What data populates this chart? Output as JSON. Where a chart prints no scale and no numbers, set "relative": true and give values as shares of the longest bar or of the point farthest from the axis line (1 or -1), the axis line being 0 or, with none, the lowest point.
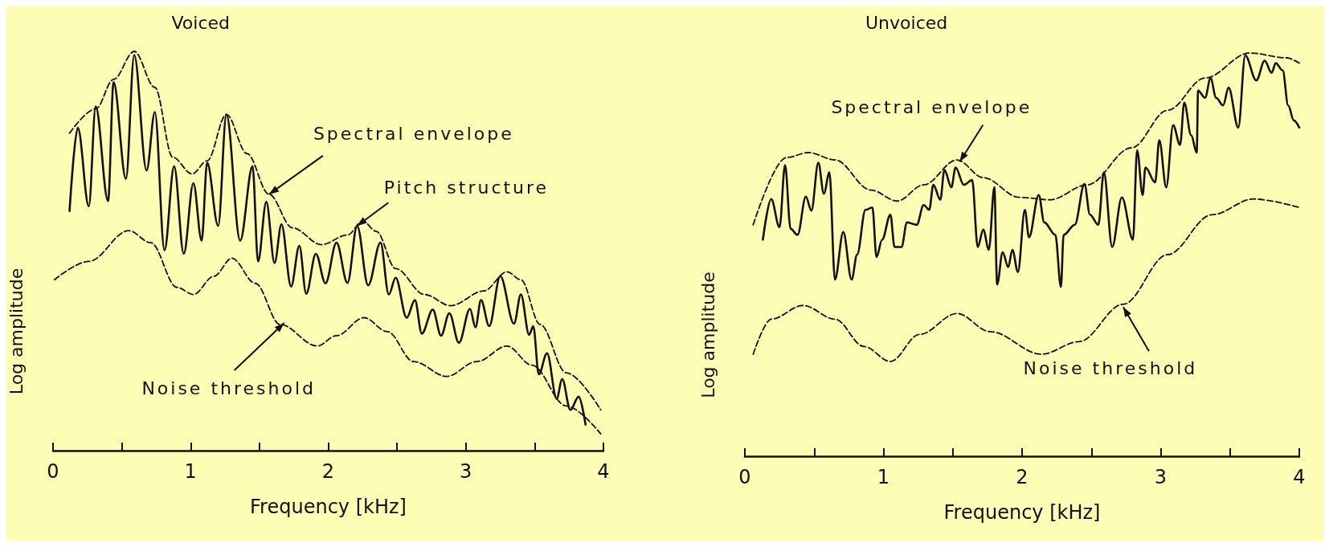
{
  "chart_data": [
    {
      "type": "line",
      "title": "Voiced",
      "xlabel": "Frequency [kHz]",
      "ylabel": "Log amplitude",
      "relative": true,
      "xlim": [
        0,
        4
      ],
      "xticks": [
        0,
        {
          "value": 0.5,
          "label": null
        },
        1,
        {
          "value": 1.5,
          "label": null
        },
        2,
        {
          "value": 2.5,
          "label": null
        },
        3,
        {
          "value": 3.5,
          "label": null
        },
        4
      ],
      "marker": "none",
      "annotations": [
        {
          "text": "Spectral envelope",
          "x": 1.57,
          "y": 0.642
        },
        {
          "text": "Pitch structure",
          "x": 2.21,
          "y": 0.563
        },
        {
          "text": "Noise threshold",
          "x": 1.68,
          "y": 0.32
        }
      ],
      "series": [
        {
          "color": "#111111",
          "line_style": "solid",
          "x": [
            0.12,
            0.18,
            0.26,
            0.31,
            0.4,
            0.44,
            0.53,
            0.59,
            0.68,
            0.74,
            0.81,
            0.88,
            0.95,
            1.02,
            1.08,
            1.12,
            1.2,
            1.26,
            1.36,
            1.45,
            1.49,
            1.55,
            1.61,
            1.66,
            1.73,
            1.79,
            1.84,
            1.91,
            1.98,
            2.06,
            2.14,
            2.21,
            2.29,
            2.38,
            2.44,
            2.49,
            2.57,
            2.63,
            2.68,
            2.76,
            2.82,
            2.88,
            2.95,
            3.03,
            3.07,
            3.11,
            3.17,
            3.25,
            3.35,
            3.4,
            3.46,
            3.49,
            3.53,
            3.59,
            3.66,
            3.7,
            3.76,
            3.82,
            3.87
          ],
          "values": [
            0.6,
            0.809,
            0.612,
            0.862,
            0.625,
            0.923,
            0.681,
            0.991,
            0.702,
            0.848,
            0.502,
            0.712,
            0.493,
            0.67,
            0.526,
            0.721,
            0.563,
            0.842,
            0.526,
            0.712,
            0.474,
            0.623,
            0.47,
            0.567,
            0.411,
            0.513,
            0.393,
            0.493,
            0.419,
            0.521,
            0.42,
            0.563,
            0.414,
            0.521,
            0.391,
            0.433,
            0.333,
            0.377,
            0.293,
            0.353,
            0.288,
            0.344,
            0.27,
            0.355,
            0.309,
            0.377,
            0.312,
            0.437,
            0.318,
            0.391,
            0.29,
            0.312,
            0.191,
            0.244,
            0.13,
            0.179,
            0.102,
            0.135,
            0.065
          ]
        },
        {
          "color": "#111111",
          "line_style": "dashed",
          "x": [
            0.12,
            0.31,
            0.44,
            0.59,
            0.74,
            0.87,
            1.01,
            1.12,
            1.26,
            1.41,
            1.57,
            1.74,
            1.95,
            2.14,
            2.25,
            2.35,
            2.49,
            2.7,
            2.89,
            3.13,
            3.3,
            3.4,
            3.54,
            3.73,
            3.98
          ],
          "values": [
            0.795,
            0.856,
            0.93,
            1.0,
            0.91,
            0.735,
            0.693,
            0.726,
            0.842,
            0.744,
            0.642,
            0.558,
            0.516,
            0.54,
            0.575,
            0.549,
            0.456,
            0.391,
            0.363,
            0.4,
            0.448,
            0.428,
            0.316,
            0.195,
            0.102
          ]
        },
        {
          "color": "#111111",
          "line_style": "dashed",
          "x": [
            0.01,
            0.26,
            0.55,
            0.71,
            0.9,
            1.02,
            1.17,
            1.3,
            1.47,
            1.65,
            1.92,
            2.06,
            2.26,
            2.43,
            2.62,
            2.86,
            3.08,
            3.3,
            3.48,
            3.73,
            3.98
          ],
          "values": [
            0.428,
            0.474,
            0.551,
            0.521,
            0.409,
            0.391,
            0.437,
            0.482,
            0.419,
            0.316,
            0.262,
            0.288,
            0.333,
            0.298,
            0.223,
            0.186,
            0.223,
            0.262,
            0.214,
            0.112,
            0.042
          ]
        }
      ]
    },
    {
      "type": "line",
      "title": "Unvoiced",
      "xlabel": "Frequency [kHz]",
      "ylabel": "Log amplitude",
      "relative": true,
      "xlim": [
        0,
        4
      ],
      "xticks": [
        0,
        {
          "value": 0.5,
          "label": null
        },
        1,
        {
          "value": 1.5,
          "label": null
        },
        2,
        {
          "value": 2.5,
          "label": null
        },
        3,
        {
          "value": 3.5,
          "label": null
        },
        4
      ],
      "marker": "none",
      "annotations": [
        {
          "text": "Spectral envelope",
          "x": 1.55,
          "y": 0.73
        },
        {
          "text": "Noise threshold",
          "x": 2.73,
          "y": 0.37
        }
      ],
      "series": [
        {
          "color": "#111111",
          "line_style": "solid",
          "x": [
            0.13,
            0.19,
            0.25,
            0.29,
            0.33,
            0.38,
            0.44,
            0.48,
            0.53,
            0.57,
            0.61,
            0.65,
            0.71,
            0.77,
            0.81,
            0.87,
            0.92,
            0.95,
            0.99,
            1.05,
            1.08,
            1.13,
            1.17,
            1.24,
            1.29,
            1.33,
            1.36,
            1.41,
            1.44,
            1.49,
            1.52,
            1.58,
            1.64,
            1.68,
            1.72,
            1.76,
            1.8,
            1.82,
            1.86,
            1.9,
            1.93,
            1.97,
            2.02,
            2.05,
            2.12,
            2.16,
            2.24,
            2.28,
            2.3,
            2.38,
            2.45,
            2.49,
            2.55,
            2.59,
            2.65,
            2.72,
            2.8,
            2.83,
            2.87,
            2.89,
            2.96,
            2.99,
            3.04,
            3.09,
            3.14,
            3.17,
            3.22,
            3.26,
            3.27,
            3.32,
            3.36,
            3.4,
            3.45,
            3.49,
            3.56,
            3.61,
            3.69,
            3.75,
            3.8,
            3.83,
            3.88,
            3.92,
            3.96,
            4.0
          ],
          "values": [
            0.537,
            0.638,
            0.568,
            0.722,
            0.564,
            0.549,
            0.644,
            0.609,
            0.728,
            0.651,
            0.704,
            0.438,
            0.556,
            0.438,
            0.5,
            0.611,
            0.617,
            0.494,
            0.537,
            0.599,
            0.519,
            0.519,
            0.58,
            0.574,
            0.623,
            0.611,
            0.673,
            0.636,
            0.71,
            0.667,
            0.716,
            0.673,
            0.685,
            0.519,
            0.562,
            0.512,
            0.667,
            0.426,
            0.506,
            0.469,
            0.512,
            0.457,
            0.611,
            0.543,
            0.648,
            0.58,
            0.549,
            0.42,
            0.549,
            0.574,
            0.675,
            0.599,
            0.574,
            0.704,
            0.519,
            0.642,
            0.537,
            0.759,
            0.648,
            0.716,
            0.679,
            0.784,
            0.667,
            0.821,
            0.772,
            0.877,
            0.796,
            0.753,
            0.907,
            0.889,
            0.938,
            0.889,
            0.87,
            0.914,
            0.815,
            0.994,
            0.932,
            0.981,
            0.951,
            0.975,
            0.957,
            0.87,
            0.833,
            0.815
          ]
        },
        {
          "color": "#111111",
          "line_style": "dashed",
          "x": [
            0.06,
            0.3,
            0.46,
            0.65,
            0.91,
            1.1,
            1.29,
            1.53,
            1.72,
            1.98,
            2.2,
            2.47,
            2.79,
            3.05,
            3.32,
            3.64,
            3.91,
            4.0
          ],
          "values": [
            0.574,
            0.741,
            0.753,
            0.735,
            0.66,
            0.633,
            0.673,
            0.735,
            0.691,
            0.642,
            0.636,
            0.673,
            0.765,
            0.858,
            0.938,
            1.0,
            0.988,
            0.975
          ]
        },
        {
          "color": "#111111",
          "line_style": "dashed",
          "x": [
            0.06,
            0.19,
            0.42,
            0.65,
            0.86,
            1.05,
            1.26,
            1.53,
            1.77,
            2.14,
            2.41,
            2.73,
            3.05,
            3.37,
            3.67,
            4.0
          ],
          "values": [
            0.253,
            0.34,
            0.374,
            0.34,
            0.272,
            0.235,
            0.302,
            0.354,
            0.309,
            0.253,
            0.284,
            0.377,
            0.5,
            0.599,
            0.638,
            0.617
          ]
        }
      ]
    }
  ]
}
